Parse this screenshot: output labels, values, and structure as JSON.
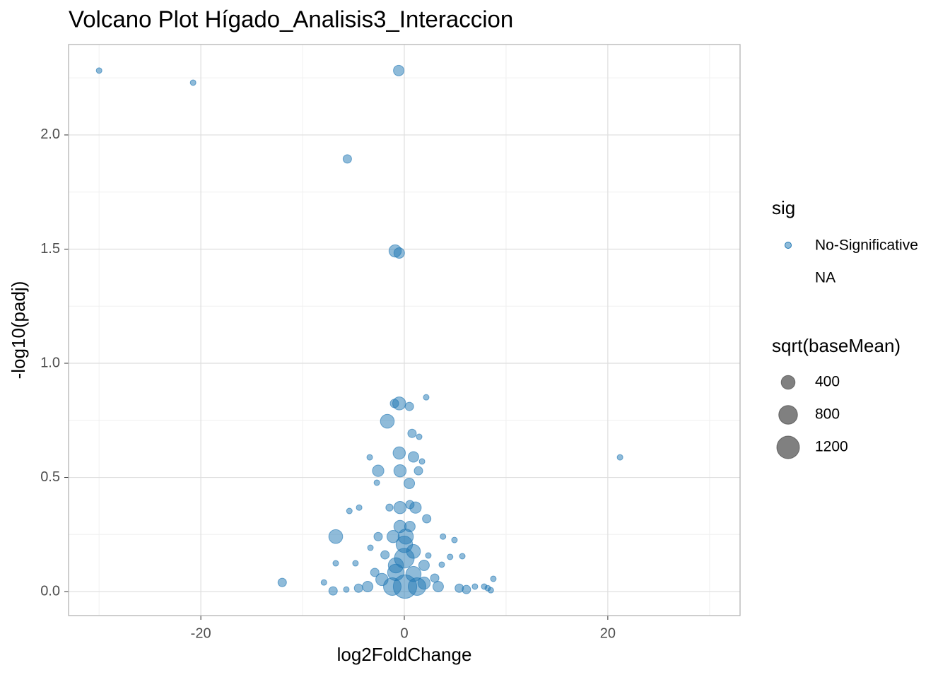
{
  "chart_data": {
    "type": "scatter",
    "title": "Volcano Plot Hígado_Analisis3_Interaccion",
    "x_label": "log2FoldChange",
    "y_label": "-log10(padj)",
    "xlim": [
      -33,
      33
    ],
    "ylim": [
      -0.105,
      2.396
    ],
    "xticks": [
      -20,
      0,
      20
    ],
    "yticks": [
      {
        "value": 0,
        "label": "0.0"
      },
      {
        "value": 0.5,
        "label": "0.5"
      },
      {
        "value": 1,
        "label": "1.0"
      },
      {
        "value": 1.5,
        "label": "1.5"
      },
      {
        "value": 2,
        "label": "2.0"
      }
    ],
    "x_minor_grid": [
      -30,
      -10,
      10,
      30
    ],
    "y_minor_grid": [
      0.25,
      0.75,
      1.25,
      1.75,
      2.25
    ],
    "grid": true,
    "series": [
      {
        "name": "No-Significative",
        "color": "#1f77b4",
        "x": [
          -30.0,
          -20.76,
          -0.55,
          -5.6,
          -0.9,
          -0.5,
          21.2,
          2.15,
          -0.97,
          -0.5,
          0.5,
          -1.67,
          0.76,
          1.46,
          -3.4,
          -0.5,
          0.9,
          1.74,
          -2.57,
          -0.42,
          1.39,
          0.49,
          -2.7,
          -5.4,
          -4.44,
          -1.46,
          -0.42,
          0.55,
          1.1,
          2.2,
          -6.74,
          -2.57,
          -1.1,
          0.14,
          3.8,
          4.93,
          -12.0,
          -6.74,
          -7.9,
          -7.0,
          -4.8,
          -3.33,
          -1.9,
          -0.83,
          0,
          0.9,
          2.36,
          3.68,
          4.5,
          5.7,
          8.75,
          0.07,
          -3.6,
          -2.2,
          1.94,
          3.33,
          5.4,
          6.94,
          8.2,
          -5.7,
          -4.5,
          -0.83,
          0.9,
          0,
          -0.42,
          0.55,
          -1.18,
          1.25,
          2.99,
          -2.9,
          1.94,
          6.1,
          8.5,
          7.85
        ],
        "values": [
          2.282,
          2.229,
          2.282,
          1.895,
          1.492,
          1.483,
          0.588,
          0.851,
          0.824,
          0.824,
          0.811,
          0.746,
          0.693,
          0.678,
          0.588,
          0.607,
          0.59,
          0.57,
          0.529,
          0.529,
          0.529,
          0.474,
          0.477,
          0.353,
          0.368,
          0.368,
          0.368,
          0.381,
          0.368,
          0.319,
          0.241,
          0.241,
          0.241,
          0.241,
          0.241,
          0.226,
          0.04,
          0.124,
          0.04,
          0.003,
          0.124,
          0.192,
          0.161,
          0.115,
          0.146,
          0.176,
          0.158,
          0.118,
          0.152,
          0.155,
          0.056,
          0.022,
          0.022,
          0.053,
          0.037,
          0.022,
          0.015,
          0.022,
          0.015,
          0.009,
          0.015,
          0.084,
          0.077,
          0.207,
          0.285,
          0.285,
          0.022,
          0.022,
          0.059,
          0.084,
          0.115,
          0.009,
          0.006,
          0.022
        ],
        "sizes": [
          0,
          0,
          200,
          100,
          300,
          200,
          0,
          0,
          100,
          350,
          100,
          400,
          100,
          0,
          0,
          300,
          200,
          0,
          250,
          300,
          100,
          200,
          0,
          0,
          0,
          50,
          300,
          100,
          250,
          100,
          400,
          100,
          300,
          500,
          0,
          0,
          100,
          0,
          0,
          100,
          0,
          0,
          100,
          500,
          900,
          400,
          0,
          0,
          0,
          0,
          0,
          1300,
          200,
          300,
          300,
          200,
          100,
          0,
          0,
          0,
          100,
          600,
          500,
          600,
          300,
          200,
          700,
          700,
          100,
          100,
          200,
          100,
          0,
          0
        ]
      }
    ],
    "color_legend_title": "sig",
    "na_label": "NA",
    "size_legend": {
      "title": "sqrt(baseMean)",
      "values": [
        400,
        800,
        1200
      ],
      "color": "#555555"
    }
  }
}
